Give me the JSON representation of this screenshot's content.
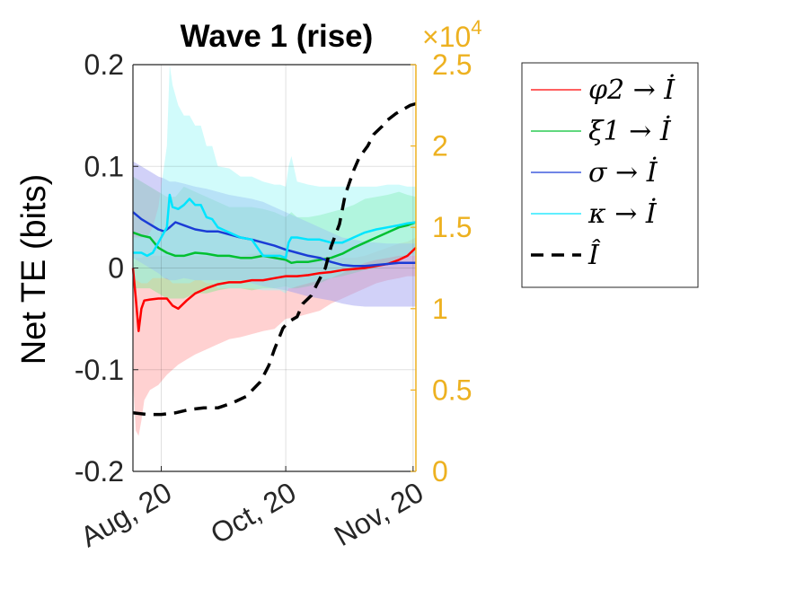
{
  "chart_data": {
    "type": "line",
    "title": "Wave 1 (rise)",
    "xlabel": "",
    "ylabel": "Net TE (bits)",
    "ylim": [
      -0.2,
      0.2
    ],
    "yticks": [
      "0.2",
      "0.1",
      "0",
      "-0.1",
      "-0.2"
    ],
    "y2lim": [
      0,
      2.5
    ],
    "y2ticks": [
      "2.5",
      "2",
      "1.5",
      "1",
      "0.5",
      "0"
    ],
    "y2_exponent": "×10^4",
    "y2_exponent_base": "×10",
    "y2_exponent_power": "4",
    "x_tick_labels": [
      "Aug, 20",
      "Oct, 20",
      "Nov, 20"
    ],
    "x_tick_positions": [
      0.1,
      0.54,
      0.99
    ],
    "grid": true,
    "legend_position": "outside-right",
    "series": [
      {
        "name": "φ2 → İ",
        "axis": "left",
        "color": "#FF0000",
        "band_color": "#FF9A9A",
        "x": [
          0,
          0.01,
          0.02,
          0.03,
          0.04,
          0.06,
          0.09,
          0.12,
          0.14,
          0.16,
          0.19,
          0.22,
          0.26,
          0.3,
          0.34,
          0.38,
          0.42,
          0.46,
          0.5,
          0.54,
          0.58,
          0.62,
          0.66,
          0.7,
          0.74,
          0.78,
          0.82,
          0.86,
          0.9,
          0.94,
          0.97,
          1.0
        ],
        "values": [
          0.0,
          -0.03,
          -0.062,
          -0.04,
          -0.032,
          -0.031,
          -0.03,
          -0.03,
          -0.037,
          -0.04,
          -0.032,
          -0.025,
          -0.02,
          -0.016,
          -0.014,
          -0.014,
          -0.012,
          -0.012,
          -0.01,
          -0.008,
          -0.008,
          -0.007,
          -0.005,
          -0.004,
          -0.002,
          -0.001,
          0.0,
          0.002,
          0.004,
          0.008,
          0.012,
          0.02
        ],
        "upper": [
          0.0,
          0.01,
          0.01,
          0.01,
          0.012,
          0.012,
          0.012,
          0.012,
          0.012,
          0.01,
          0.012,
          0.012,
          0.012,
          0.012,
          0.012,
          0.012,
          0.014,
          0.014,
          0.016,
          0.016,
          0.016,
          0.014,
          0.012,
          0.01,
          0.01,
          0.01,
          0.012,
          0.016,
          0.02,
          0.024,
          0.026,
          0.03
        ],
        "lower": [
          -0.11,
          -0.16,
          -0.165,
          -0.15,
          -0.13,
          -0.12,
          -0.115,
          -0.105,
          -0.1,
          -0.095,
          -0.09,
          -0.085,
          -0.08,
          -0.075,
          -0.07,
          -0.068,
          -0.065,
          -0.062,
          -0.06,
          -0.05,
          -0.048,
          -0.045,
          -0.042,
          -0.035,
          -0.03,
          -0.025,
          -0.02,
          -0.015,
          -0.012,
          -0.01,
          -0.008,
          -0.008
        ]
      },
      {
        "name": "ξ1 → İ",
        "axis": "left",
        "color": "#00C030",
        "band_color": "#7EE88A",
        "x": [
          0,
          0.03,
          0.06,
          0.09,
          0.12,
          0.15,
          0.18,
          0.22,
          0.26,
          0.3,
          0.34,
          0.38,
          0.42,
          0.46,
          0.5,
          0.54,
          0.56,
          0.58,
          0.62,
          0.66,
          0.7,
          0.74,
          0.78,
          0.82,
          0.86,
          0.9,
          0.94,
          0.97,
          1.0
        ],
        "values": [
          0.035,
          0.032,
          0.03,
          0.02,
          0.015,
          0.012,
          0.012,
          0.015,
          0.014,
          0.012,
          0.012,
          0.01,
          0.01,
          0.012,
          0.01,
          0.008,
          0.005,
          0.006,
          0.006,
          0.008,
          0.01,
          0.014,
          0.02,
          0.025,
          0.03,
          0.035,
          0.04,
          0.042,
          0.045
        ],
        "upper": [
          0.09,
          0.085,
          0.08,
          0.075,
          0.07,
          0.07,
          0.08,
          0.075,
          0.07,
          0.065,
          0.06,
          0.06,
          0.06,
          0.058,
          0.055,
          0.05,
          0.055,
          0.05,
          0.05,
          0.052,
          0.055,
          0.058,
          0.062,
          0.068,
          0.07,
          0.072,
          0.075,
          0.072,
          0.07
        ],
        "lower": [
          -0.02,
          -0.02,
          -0.02,
          -0.025,
          -0.03,
          -0.03,
          -0.03,
          -0.025,
          -0.025,
          -0.022,
          -0.02,
          -0.02,
          -0.022,
          -0.02,
          -0.02,
          -0.018,
          -0.02,
          -0.02,
          -0.018,
          -0.015,
          -0.01,
          -0.008,
          -0.005,
          -0.002,
          0.0,
          0.005,
          0.01,
          0.012,
          0.015
        ]
      },
      {
        "name": "σ → İ",
        "axis": "left",
        "color": "#1A3CD6",
        "band_color": "#9A9AF0",
        "x": [
          0,
          0.03,
          0.06,
          0.09,
          0.11,
          0.13,
          0.15,
          0.18,
          0.22,
          0.26,
          0.3,
          0.34,
          0.38,
          0.42,
          0.46,
          0.5,
          0.54,
          0.58,
          0.62,
          0.66,
          0.7,
          0.74,
          0.78,
          0.82,
          0.86,
          0.9,
          0.94,
          0.97,
          1.0
        ],
        "values": [
          0.055,
          0.048,
          0.043,
          0.038,
          0.036,
          0.04,
          0.045,
          0.042,
          0.038,
          0.036,
          0.036,
          0.033,
          0.03,
          0.028,
          0.025,
          0.022,
          0.018,
          0.015,
          0.012,
          0.01,
          0.006,
          0.003,
          0.002,
          0.002,
          0.003,
          0.004,
          0.005,
          0.005,
          0.005
        ],
        "upper": [
          0.105,
          0.1,
          0.095,
          0.09,
          0.088,
          0.085,
          0.085,
          0.083,
          0.08,
          0.078,
          0.075,
          0.072,
          0.07,
          0.068,
          0.065,
          0.06,
          0.055,
          0.05,
          0.045,
          0.04,
          0.035,
          0.03,
          0.028,
          0.026,
          0.025,
          0.024,
          0.024,
          0.024,
          0.024
        ],
        "lower": [
          0.01,
          0.005,
          0.0,
          -0.005,
          -0.01,
          -0.012,
          -0.012,
          -0.01,
          -0.012,
          -0.012,
          -0.012,
          -0.012,
          -0.012,
          -0.015,
          -0.018,
          -0.02,
          -0.022,
          -0.025,
          -0.028,
          -0.03,
          -0.032,
          -0.035,
          -0.037,
          -0.038,
          -0.038,
          -0.038,
          -0.038,
          -0.038,
          -0.038
        ]
      },
      {
        "name": "κ → İ",
        "axis": "left",
        "color": "#00E5FF",
        "band_color": "#9AF7F7",
        "x": [
          0,
          0.03,
          0.05,
          0.07,
          0.09,
          0.12,
          0.13,
          0.14,
          0.16,
          0.18,
          0.2,
          0.22,
          0.24,
          0.26,
          0.28,
          0.3,
          0.34,
          0.38,
          0.42,
          0.46,
          0.5,
          0.52,
          0.54,
          0.55,
          0.56,
          0.58,
          0.62,
          0.66,
          0.7,
          0.74,
          0.78,
          0.82,
          0.86,
          0.9,
          0.94,
          0.97,
          1.0
        ],
        "values": [
          0.015,
          0.015,
          0.012,
          0.015,
          0.025,
          0.04,
          0.072,
          0.06,
          0.058,
          0.062,
          0.068,
          0.062,
          0.062,
          0.05,
          0.048,
          0.04,
          0.035,
          0.03,
          0.028,
          0.012,
          0.012,
          0.012,
          0.01,
          0.025,
          0.03,
          0.03,
          0.028,
          0.028,
          0.025,
          0.025,
          0.03,
          0.035,
          0.038,
          0.04,
          0.042,
          0.044,
          0.045
        ],
        "upper": [
          0.03,
          0.03,
          0.03,
          0.04,
          0.06,
          0.12,
          0.2,
          0.18,
          0.16,
          0.15,
          0.15,
          0.14,
          0.14,
          0.12,
          0.12,
          0.1,
          0.098,
          0.09,
          0.09,
          0.085,
          0.082,
          0.082,
          0.08,
          0.1,
          0.11,
          0.085,
          0.082,
          0.08,
          0.08,
          0.08,
          0.08,
          0.08,
          0.08,
          0.082,
          0.082,
          0.08,
          0.08
        ],
        "lower": [
          -0.01,
          -0.015,
          -0.015,
          -0.01,
          -0.01,
          -0.01,
          -0.012,
          -0.015,
          -0.015,
          -0.015,
          -0.015,
          -0.012,
          -0.012,
          -0.015,
          -0.015,
          -0.02,
          -0.02,
          -0.02,
          -0.02,
          -0.022,
          -0.022,
          -0.022,
          -0.025,
          -0.02,
          -0.02,
          -0.018,
          -0.015,
          -0.012,
          -0.01,
          -0.005,
          0.0,
          0.005,
          0.008,
          0.01,
          0.012,
          0.012,
          0.012
        ]
      },
      {
        "name": "Î",
        "axis": "right",
        "color": "#000000",
        "dashed": true,
        "x": [
          0,
          0.05,
          0.1,
          0.15,
          0.2,
          0.25,
          0.3,
          0.35,
          0.4,
          0.45,
          0.48,
          0.5,
          0.53,
          0.55,
          0.58,
          0.6,
          0.63,
          0.65,
          0.68,
          0.7,
          0.73,
          0.75,
          0.78,
          0.8,
          0.83,
          0.85,
          0.88,
          0.9,
          0.93,
          0.95,
          0.98,
          1.0
        ],
        "values": [
          0.36,
          0.35,
          0.35,
          0.36,
          0.38,
          0.39,
          0.39,
          0.42,
          0.46,
          0.55,
          0.65,
          0.75,
          0.88,
          0.92,
          0.95,
          1.03,
          1.08,
          1.15,
          1.25,
          1.38,
          1.52,
          1.7,
          1.85,
          1.93,
          2.0,
          2.07,
          2.12,
          2.16,
          2.2,
          2.22,
          2.25,
          2.26
        ]
      }
    ]
  }
}
